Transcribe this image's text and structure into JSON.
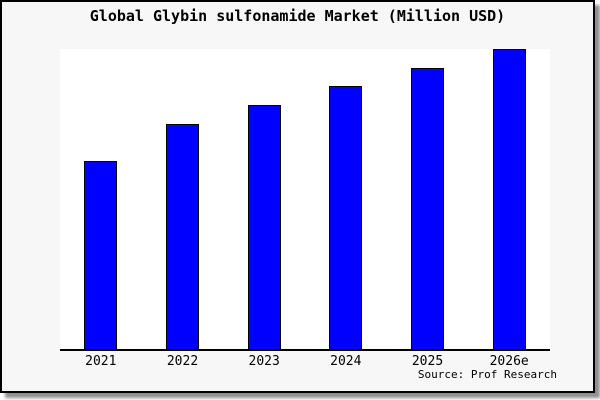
{
  "title": "Global Glybin sulfonamide Market (Million USD)",
  "source": "Source: Prof Research",
  "colors": {
    "bar_fill": "#0000ff",
    "bar_border": "#000000",
    "frame_border": "#000000",
    "page_background": "#f7f7f7",
    "plot_background": "#ffffff",
    "axis": "#000000",
    "shadow": "#8f8f8f",
    "text": "#000000"
  },
  "chart_data": {
    "type": "bar",
    "title": "Global Glybin sulfonamide Market (Million USD)",
    "categories": [
      "2021",
      "2022",
      "2023",
      "2024",
      "2025",
      "2026e"
    ],
    "values": [
      62.7,
      75.0,
      81.3,
      87.7,
      93.7,
      100.0
    ],
    "value_note": "No y-axis or data labels are shown in the image; values are estimated from bar pixel heights, indexed so 2026e = 100",
    "xlabel": "",
    "ylabel": "",
    "ylim": [
      0,
      100
    ],
    "grid": false,
    "legend": false,
    "bar_count": 6
  }
}
